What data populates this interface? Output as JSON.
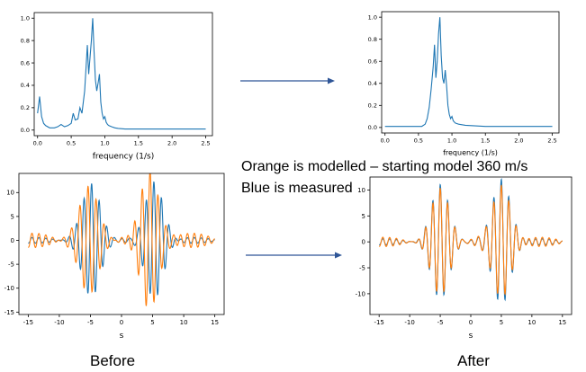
{
  "notes": {
    "line1": "Orange is modelled – starting model 360 m/s",
    "line2": "Blue is measured",
    "before": "Before",
    "after": "After"
  },
  "colors": {
    "measured": "#1f77b4",
    "modelled": "#ff7f0e",
    "arrow": "#2e5597"
  },
  "chart_data": [
    {
      "type": "line",
      "title": "",
      "xlabel": "frequency (1/s)",
      "ylabel": "",
      "xlim": [
        -0.05,
        2.6
      ],
      "ylim": [
        -0.05,
        1.05
      ],
      "xticks": [
        "0.0",
        "0.5",
        "1.0",
        "1.5",
        "2.0",
        "2.5"
      ],
      "yticks": [
        "0.0",
        "0.2",
        "0.4",
        "0.6",
        "0.8",
        "1.0"
      ],
      "grid": false,
      "series": [
        {
          "color": "#1f77b4",
          "x": [
            0.0,
            0.03,
            0.06,
            0.09,
            0.12,
            0.18,
            0.25,
            0.3,
            0.35,
            0.4,
            0.45,
            0.5,
            0.53,
            0.56,
            0.6,
            0.63,
            0.66,
            0.7,
            0.72,
            0.74,
            0.76,
            0.78,
            0.8,
            0.82,
            0.84,
            0.86,
            0.88,
            0.9,
            0.92,
            0.94,
            0.96,
            0.98,
            1.0,
            1.02,
            1.04,
            1.06,
            1.1,
            1.15,
            1.2,
            1.3,
            1.5,
            2.0,
            2.5
          ],
          "y": [
            0.15,
            0.3,
            0.12,
            0.06,
            0.04,
            0.02,
            0.02,
            0.03,
            0.05,
            0.03,
            0.04,
            0.06,
            0.15,
            0.09,
            0.1,
            0.2,
            0.15,
            0.35,
            0.55,
            0.76,
            0.5,
            0.65,
            0.8,
            1.0,
            0.7,
            0.45,
            0.35,
            0.42,
            0.5,
            0.25,
            0.15,
            0.1,
            0.12,
            0.07,
            0.05,
            0.04,
            0.03,
            0.02,
            0.015,
            0.01,
            0.01,
            0.01,
            0.01
          ]
        }
      ]
    },
    {
      "type": "line",
      "title": "",
      "xlabel": "frequency (1/s)",
      "ylabel": "",
      "xlim": [
        -0.05,
        2.6
      ],
      "ylim": [
        -0.05,
        1.05
      ],
      "xticks": [
        "0.0",
        "0.5",
        "1.0",
        "1.5",
        "2.0",
        "2.5"
      ],
      "yticks": [
        "0.0",
        "0.2",
        "0.4",
        "0.6",
        "0.8",
        "1.0"
      ],
      "grid": false,
      "series": [
        {
          "color": "#1f77b4",
          "x": [
            0.0,
            0.2,
            0.4,
            0.55,
            0.6,
            0.63,
            0.66,
            0.69,
            0.72,
            0.74,
            0.76,
            0.78,
            0.8,
            0.82,
            0.84,
            0.86,
            0.88,
            0.9,
            0.92,
            0.94,
            0.96,
            0.98,
            1.0,
            1.02,
            1.05,
            1.1,
            1.2,
            1.5,
            2.0,
            2.5
          ],
          "y": [
            0.01,
            0.01,
            0.01,
            0.01,
            0.03,
            0.08,
            0.18,
            0.35,
            0.55,
            0.75,
            0.45,
            0.6,
            0.85,
            1.0,
            0.65,
            0.45,
            0.4,
            0.52,
            0.38,
            0.2,
            0.12,
            0.08,
            0.1,
            0.06,
            0.04,
            0.03,
            0.02,
            0.01,
            0.01,
            0.01
          ]
        }
      ]
    },
    {
      "type": "line",
      "title": "",
      "xlabel": "s",
      "ylabel": "",
      "xlim": [
        -16.5,
        16.5
      ],
      "ylim": [
        -15.5,
        14
      ],
      "xticks": [
        "-15",
        "-10",
        "-5",
        "0",
        "5",
        "10",
        "15"
      ],
      "yticks": [
        "-15",
        "-10",
        "-5",
        "0",
        "5",
        "10"
      ],
      "grid": false,
      "series": [
        {
          "color": "#1f77b4",
          "x_range": [
            -15,
            15
          ],
          "center_a": -4.8,
          "amp_a": 11.5,
          "center_b": 5.2,
          "amp_b": 12.5,
          "width": 2.1,
          "frequency": 0.82,
          "noise_amp": 0.6
        },
        {
          "color": "#ff7f0e",
          "x_range": [
            -15,
            15
          ],
          "center_a": -5.4,
          "amp_a": 12.5,
          "center_b": 4.6,
          "amp_b": 13.5,
          "width": 2.1,
          "frequency": 0.78,
          "noise_amp": 1.5
        }
      ]
    },
    {
      "type": "line",
      "title": "",
      "xlabel": "s",
      "ylabel": "",
      "xlim": [
        -16.5,
        16.5
      ],
      "ylim": [
        -14,
        12.5
      ],
      "xticks": [
        "-15",
        "-10",
        "-5",
        "0",
        "5",
        "10",
        "15"
      ],
      "yticks": [
        "-10",
        "-5",
        "0",
        "5",
        "10"
      ],
      "grid": false,
      "series": [
        {
          "color": "#1f77b4",
          "x_range": [
            -15,
            15
          ],
          "center_a": -5.0,
          "amp_a": 10.5,
          "center_b": 5.0,
          "amp_b": 12.5,
          "width": 2.1,
          "frequency": 0.82,
          "noise_amp": 0.6
        },
        {
          "color": "#ff7f0e",
          "x_range": [
            -15,
            15
          ],
          "center_a": -5.0,
          "amp_a": 9.5,
          "center_b": 5.0,
          "amp_b": 11.5,
          "width": 2.1,
          "frequency": 0.82,
          "noise_amp": 0.9
        }
      ]
    }
  ]
}
